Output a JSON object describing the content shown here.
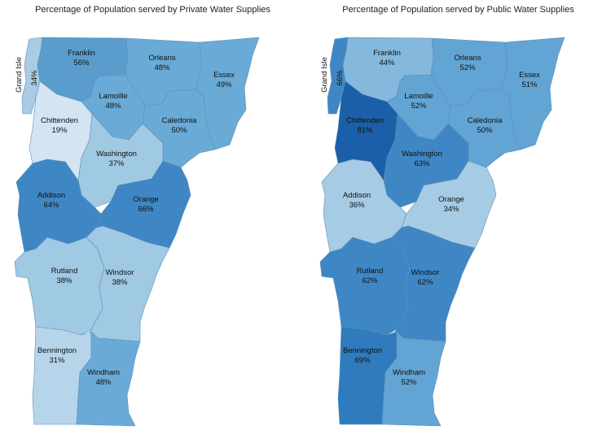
{
  "maps": [
    {
      "title": "Percentage of Population served by Private Water Supplies",
      "counties": [
        {
          "name": "Grand Isle",
          "value": "34%",
          "color": "#a9cce4"
        },
        {
          "name": "Franklin",
          "value": "56%",
          "color": "#5a9ccc"
        },
        {
          "name": "Orleans",
          "value": "48%",
          "color": "#6aaad6"
        },
        {
          "name": "Essex",
          "value": "49%",
          "color": "#6aaad6"
        },
        {
          "name": "Lamoille",
          "value": "48%",
          "color": "#6aaad6"
        },
        {
          "name": "Chittenden",
          "value": "19%",
          "color": "#d3e4f3"
        },
        {
          "name": "Caledonia",
          "value": "50%",
          "color": "#6aaad6"
        },
        {
          "name": "Washington",
          "value": "37%",
          "color": "#a0c9e3"
        },
        {
          "name": "Addison",
          "value": "64%",
          "color": "#3f87c4"
        },
        {
          "name": "Orange",
          "value": "66%",
          "color": "#3f87c4"
        },
        {
          "name": "Rutland",
          "value": "38%",
          "color": "#a0c9e3"
        },
        {
          "name": "Windsor",
          "value": "38%",
          "color": "#a0c9e3"
        },
        {
          "name": "Bennington",
          "value": "31%",
          "color": "#b7d5ea"
        },
        {
          "name": "Windham",
          "value": "48%",
          "color": "#6aaad6"
        }
      ]
    },
    {
      "title": "Percentage of Population served by Public Water Supplies",
      "counties": [
        {
          "name": "Grand Isle",
          "value": "66%",
          "color": "#3f87c4"
        },
        {
          "name": "Franklin",
          "value": "44%",
          "color": "#84b8dc"
        },
        {
          "name": "Orleans",
          "value": "52%",
          "color": "#62a4d3"
        },
        {
          "name": "Essex",
          "value": "51%",
          "color": "#62a4d3"
        },
        {
          "name": "Lamoille",
          "value": "52%",
          "color": "#62a4d3"
        },
        {
          "name": "Chittenden",
          "value": "81%",
          "color": "#1b5fa8"
        },
        {
          "name": "Caledonia",
          "value": "50%",
          "color": "#62a4d3"
        },
        {
          "name": "Washington",
          "value": "63%",
          "color": "#3f87c4"
        },
        {
          "name": "Addison",
          "value": "36%",
          "color": "#a6cbe4"
        },
        {
          "name": "Orange",
          "value": "34%",
          "color": "#a6cbe4"
        },
        {
          "name": "Rutland",
          "value": "62%",
          "color": "#3f87c4"
        },
        {
          "name": "Windsor",
          "value": "62%",
          "color": "#3f87c4"
        },
        {
          "name": "Bennington",
          "value": "69%",
          "color": "#2f7bbd"
        },
        {
          "name": "Windham",
          "value": "52%",
          "color": "#62a4d3"
        }
      ]
    }
  ]
}
